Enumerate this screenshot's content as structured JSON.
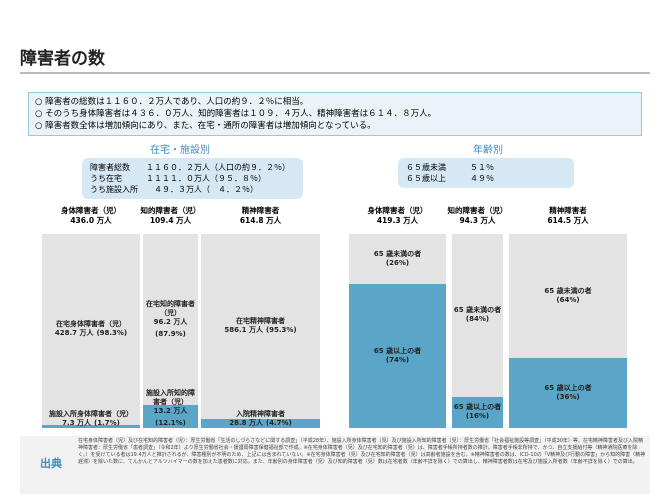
{
  "header": {
    "title": "障害者の数"
  },
  "summary": [
    "○ 障害者の総数は１１６０．２万人であり、人口の約９．２％に相当。",
    "○ そのうち身体障害者は４３６．０万人、知的障害者は１０９．４万人、精神障害者は６１４．８万人。",
    "○ 障害者数全体は増加傾向にあり、また、在宅・通所の障害者は増加傾向となっている。"
  ],
  "panels": [
    {
      "title": "在宅・施設別",
      "box": [
        "障害者総数　　１１６０．２万人（人口の約９．２％）",
        "うち在宅　　　１１１１．０万人（９５．８％）",
        "うち施設入所　　４９．３万人（　４．２％）"
      ],
      "columns": [
        {
          "header": "身体障害者（児）",
          "total": "436.0 万人",
          "segments": [
            {
              "name": "在宅身体障害者（児）",
              "amount": "428.7 万人",
              "share": {
                "value": 98.3,
                "label": "(98.3%)"
              }
            },
            {
              "name": "施設入所身体障害者（児）",
              "amount": "7.3 万人",
              "share": {
                "value": 1.7,
                "label": "(1.7%)"
              }
            }
          ]
        },
        {
          "header": "知的障害者（児）",
          "total": "109.4 万人",
          "segments": [
            {
              "name": "在宅知的障害者（児）",
              "amount": "96.2 万人",
              "share": {
                "value": 87.9,
                "label": "(87.9%)"
              }
            },
            {
              "name": "施設入所知的障害者（児）",
              "amount": "13.2 万人",
              "share": {
                "value": 12.1,
                "label": "(12.1%)"
              }
            }
          ]
        },
        {
          "header": "精神障害者",
          "total": "614.8 万人",
          "segments": [
            {
              "name": "在宅精神障害者",
              "amount": "586.1 万人",
              "share": {
                "value": 95.3,
                "label": "(95.3%)"
              }
            },
            {
              "name": "入院精神障害者",
              "amount": "28.8 万人",
              "share": {
                "value": 4.7,
                "label": "(4.7%)"
              }
            }
          ]
        }
      ]
    },
    {
      "title": "年齢別",
      "box": [
        "６５歳未満　　　５１％",
        "６５歳以上　　　４９％"
      ],
      "columns": [
        {
          "header": "身体障害者（児）",
          "total": "419.3 万人",
          "segments": [
            {
              "name": "65 歳未満の者",
              "share": {
                "value": 26,
                "label": "(26%)"
              }
            },
            {
              "name": "65 歳以上の者",
              "share": {
                "value": 74,
                "label": "(74%)"
              }
            }
          ]
        },
        {
          "header": "知的障害者（児）",
          "total": "94.3 万人",
          "segments": [
            {
              "name": "65 歳未満の者",
              "share": {
                "value": 84,
                "label": "(84%)"
              }
            },
            {
              "name": "65 歳以上の者",
              "share": {
                "value": 16,
                "label": "(16%)"
              }
            }
          ]
        },
        {
          "header": "精神障害者",
          "total": "614.5 万人",
          "segments": [
            {
              "name": "65 歳未満の者",
              "share": {
                "value": 64,
                "label": "(64%)"
              }
            },
            {
              "name": "65 歳以上の者",
              "share": {
                "value": 36,
                "label": "(36%)"
              }
            }
          ]
        }
      ]
    }
  ],
  "source": {
    "label": "出典",
    "text": "在宅身体障害者（児）及び在宅知的障害者（児）：厚生労働省「生活のしづらさなどに関する調査」（平成28年）、施設入所身体障害者（児）及び施設入所知的障害者（児）：厚生労働省「社会福祉施設等調査」（平成30年）等、在宅精神障害者及び入院精神障害者：厚生労働省「患者調査」（令和2年）より厚生労働省社会・援護局障害保健福祉部で作成。※在宅身体障害者（児）及び在宅知的障害者（児）は、障害者手帳所持者数の推計。障害者手帳非所持で、かつ、自立支援給付等（精神通院医療を除く。）を受けている者は19.4万人と推計されるが、障害種別が不明のため、上記には含まれていない。※在宅身体障害者（児）及び在宅知的障害者（児）は高齢者施設を含む。※精神障害者の数は、ICD-10の「Ⅴ精神及び行動の障害」から知的障害（精神遅滞）を除いた数に、てんかんとアルツハイマーの数を加えた患者数に対応。また、年齢別の身体障害者（児）及び知的障害者（児）数は在宅者数（年齢不詳を除く）での算出し、精神障害者数は在宅及び施設入所者数（年齢不詳を除く）での算出。"
  }
}
